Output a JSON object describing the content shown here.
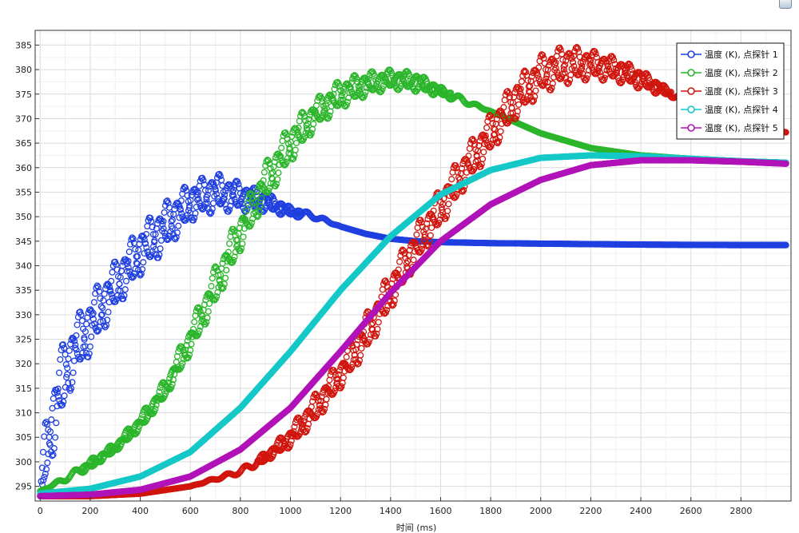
{
  "chart_data": {
    "type": "line",
    "title": "",
    "xlabel": "时间 (ms)",
    "ylabel": "",
    "xlim": [
      -20,
      3000
    ],
    "ylim": [
      292,
      388
    ],
    "xticks": [
      0,
      200,
      400,
      600,
      800,
      1000,
      1200,
      1400,
      1600,
      1800,
      2000,
      2200,
      2400,
      2600,
      2800
    ],
    "yticks": [
      295,
      300,
      305,
      310,
      315,
      320,
      325,
      330,
      335,
      340,
      345,
      350,
      355,
      360,
      365,
      370,
      375,
      380,
      385
    ],
    "grid": true,
    "legend_position": "top-right",
    "marker": "circle",
    "series": [
      {
        "name": "温度 (K), 点探针 1",
        "color": "#1f3fe0",
        "x": [
          0,
          20,
          50,
          100,
          150,
          200,
          300,
          400,
          500,
          600,
          700,
          800,
          900,
          1000,
          1100,
          1200,
          1300,
          1400,
          1500,
          1600,
          1800,
          2000,
          2400,
          2800,
          2980
        ],
        "y": [
          294,
          302,
          309,
          319,
          324,
          328,
          336,
          343,
          348,
          353,
          355,
          354,
          353,
          351,
          350,
          348,
          346.5,
          345.5,
          345,
          344.8,
          344.6,
          344.5,
          344.3,
          344.2,
          344.2
        ],
        "band": [
          0,
          6,
          8,
          7,
          6,
          6,
          5,
          5,
          5,
          4,
          4,
          3,
          2,
          1,
          0.5,
          0,
          0,
          0,
          0,
          0,
          0,
          0,
          0,
          0,
          0
        ]
      },
      {
        "name": "温度 (K), 点探针 2",
        "color": "#2ab52a",
        "x": [
          0,
          100,
          200,
          300,
          400,
          500,
          600,
          700,
          800,
          900,
          1000,
          1100,
          1200,
          1300,
          1400,
          1500,
          1600,
          1800,
          2000,
          2200,
          2400,
          2600,
          2800,
          2980
        ],
        "y": [
          294,
          296.5,
          299.5,
          303,
          308,
          315,
          325,
          336,
          347,
          357,
          365,
          371,
          375,
          377,
          378,
          377.5,
          375.5,
          371.5,
          367,
          364,
          362.5,
          361.8,
          361.3,
          361
        ],
        "band": [
          0,
          0.5,
          1,
          1,
          1.5,
          2,
          3,
          4,
          4,
          4,
          4,
          3,
          3,
          2.5,
          2,
          2,
          1,
          0,
          0,
          0,
          0,
          0,
          0,
          0
        ]
      },
      {
        "name": "温度 (K), 点探针 3",
        "color": "#d0140c",
        "x": [
          0,
          200,
          400,
          600,
          800,
          900,
          1000,
          1100,
          1200,
          1300,
          1400,
          1500,
          1600,
          1700,
          1800,
          1900,
          2000,
          2100,
          2200,
          2300,
          2400,
          2500,
          2600,
          2700,
          2800,
          2900,
          2980
        ],
        "y": [
          293,
          293,
          293.5,
          295,
          298,
          301,
          305,
          311,
          318,
          326,
          335,
          344,
          352,
          360,
          367,
          374,
          379,
          381,
          381,
          380,
          378,
          375.5,
          373.5,
          371.5,
          369.5,
          368,
          367.2
        ],
        "band": [
          0,
          0,
          0,
          0,
          0.5,
          1,
          2,
          3,
          3,
          4,
          4,
          4,
          4,
          4,
          4,
          4,
          4,
          4,
          3,
          2.5,
          2,
          1,
          0,
          0,
          0,
          0,
          0
        ]
      },
      {
        "name": "温度 (K), 点探针 4",
        "color": "#15c8c8",
        "x": [
          0,
          200,
          400,
          600,
          800,
          1000,
          1200,
          1400,
          1600,
          1800,
          2000,
          2200,
          2400,
          2600,
          2800,
          2980
        ],
        "y": [
          293.5,
          294.5,
          297,
          302,
          311,
          322.5,
          335,
          346,
          354.5,
          359.5,
          362,
          362.5,
          362.3,
          361.8,
          361.3,
          361
        ],
        "band": [
          0,
          0,
          0,
          0,
          0,
          0,
          0,
          0,
          0,
          0,
          0,
          0,
          0,
          0,
          0,
          0
        ]
      },
      {
        "name": "温度 (K), 点探针 5",
        "color": "#b012b8",
        "x": [
          0,
          200,
          400,
          600,
          800,
          1000,
          1200,
          1400,
          1600,
          1800,
          2000,
          2200,
          2400,
          2600,
          2800,
          2980
        ],
        "y": [
          293,
          293.3,
          294.3,
          297,
          302.5,
          311,
          322.5,
          334.5,
          345,
          352.5,
          357.5,
          360.5,
          361.5,
          361.5,
          361.2,
          360.8
        ],
        "band": [
          0,
          0,
          0,
          0,
          0,
          0,
          0,
          0,
          0,
          0,
          0,
          0,
          0,
          0,
          0,
          0
        ]
      }
    ]
  }
}
